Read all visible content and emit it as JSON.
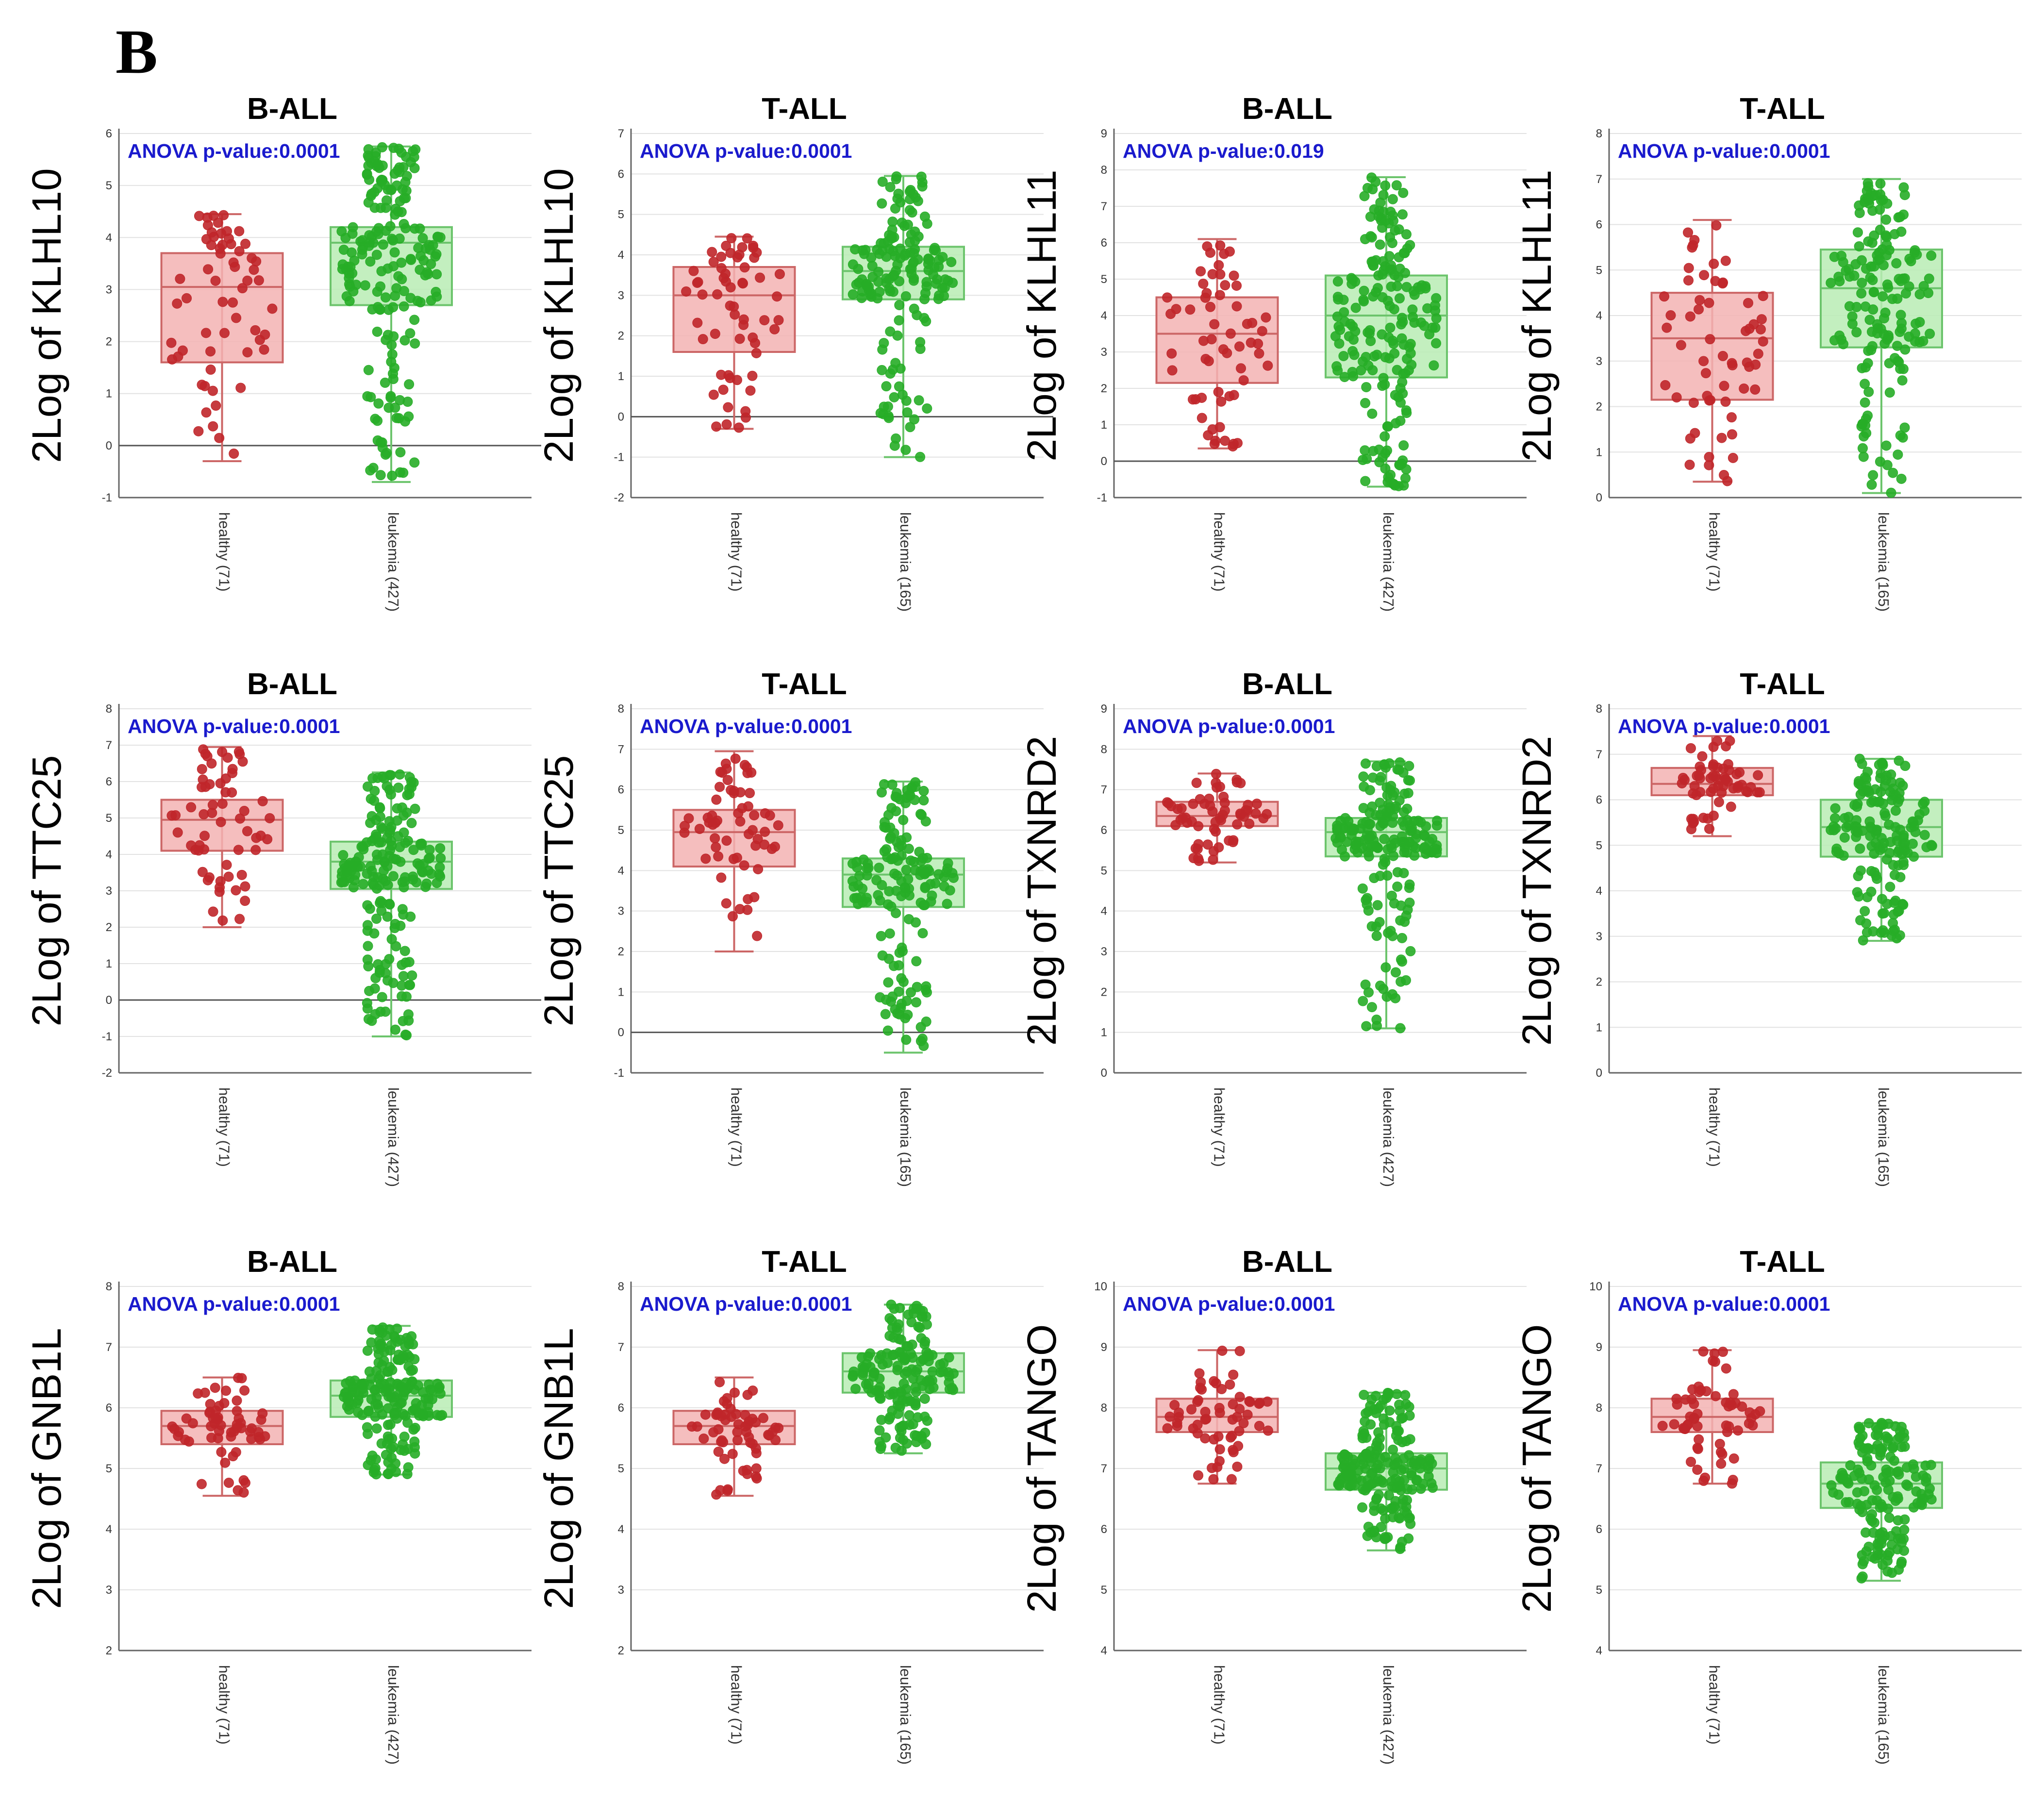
{
  "panel_label": "B",
  "colors": {
    "healthy_point": "#c0262a",
    "healthy_box": "#f3b3b3",
    "healthy_stroke": "#cc6666",
    "leukemia_point": "#27ad27",
    "leukemia_box": "#b8ecb4",
    "leukemia_stroke": "#6cc46c",
    "anova_text": "#1a1acd"
  },
  "chart_data": [
    {
      "type": "box",
      "title": "B-ALL",
      "ylabel": "2Log of KLHL10",
      "annotation": "ANOVA p-value:0.0001",
      "ylim": [
        -1,
        6
      ],
      "yticks": [
        "-1",
        "0",
        "1",
        "2",
        "3",
        "4",
        "5",
        "6"
      ],
      "zero_line": true,
      "categories": [
        "healthy (71)",
        "leukemia (427)"
      ],
      "groups": [
        {
          "name": "healthy (71)",
          "whisker_low": -0.3,
          "q1": 1.6,
          "median": 3.05,
          "q3": 3.7,
          "whisker_high": 4.45,
          "n": 71
        },
        {
          "name": "leukemia (427)",
          "whisker_low": -0.7,
          "q1": 2.7,
          "median": 3.9,
          "q3": 4.2,
          "whisker_high": 5.75,
          "n": 427
        }
      ]
    },
    {
      "type": "box",
      "title": "T-ALL",
      "ylabel": "2Log of KLHL10",
      "annotation": "ANOVA p-value:0.0001",
      "ylim": [
        -2,
        7
      ],
      "yticks": [
        "-2",
        "-1",
        "0",
        "1",
        "2",
        "3",
        "4",
        "5",
        "6",
        "7"
      ],
      "zero_line": true,
      "categories": [
        "healthy (71)",
        "leukemia (165)"
      ],
      "groups": [
        {
          "name": "healthy (71)",
          "whisker_low": -0.3,
          "q1": 1.6,
          "median": 3.0,
          "q3": 3.7,
          "whisker_high": 4.45,
          "n": 71
        },
        {
          "name": "leukemia (165)",
          "whisker_low": -1.0,
          "q1": 2.9,
          "median": 3.6,
          "q3": 4.2,
          "whisker_high": 5.95,
          "n": 165
        }
      ]
    },
    {
      "type": "box",
      "title": "B-ALL",
      "ylabel": "2Log of KLHL11",
      "annotation": "ANOVA p-value:0.019",
      "ylim": [
        -1,
        9
      ],
      "yticks": [
        "-1",
        "0",
        "1",
        "2",
        "3",
        "4",
        "5",
        "6",
        "7",
        "8",
        "9"
      ],
      "zero_line": true,
      "categories": [
        "healthy (71)",
        "leukemia (427)"
      ],
      "groups": [
        {
          "name": "healthy (71)",
          "whisker_low": 0.35,
          "q1": 2.15,
          "median": 3.5,
          "q3": 4.5,
          "whisker_high": 6.1,
          "n": 71
        },
        {
          "name": "leukemia (427)",
          "whisker_low": -0.7,
          "q1": 2.3,
          "median": 4.0,
          "q3": 5.1,
          "whisker_high": 7.8,
          "n": 427
        }
      ]
    },
    {
      "type": "box",
      "title": "T-ALL",
      "ylabel": "2Log of KLHL11",
      "annotation": "ANOVA p-value:0.0001",
      "ylim": [
        0,
        8
      ],
      "yticks": [
        "0",
        "1",
        "2",
        "3",
        "4",
        "5",
        "6",
        "7",
        "8"
      ],
      "zero_line": false,
      "categories": [
        "healthy (71)",
        "leukemia (165)"
      ],
      "groups": [
        {
          "name": "healthy (71)",
          "whisker_low": 0.35,
          "q1": 2.15,
          "median": 3.5,
          "q3": 4.5,
          "whisker_high": 6.1,
          "n": 71
        },
        {
          "name": "leukemia (165)",
          "whisker_low": 0.1,
          "q1": 3.3,
          "median": 4.6,
          "q3": 5.45,
          "whisker_high": 7.0,
          "n": 165
        }
      ]
    },
    {
      "type": "box",
      "title": "B-ALL",
      "ylabel": "2Log of TTC25",
      "annotation": "ANOVA p-value:0.0001",
      "ylim": [
        -2,
        8
      ],
      "yticks": [
        "-2",
        "-1",
        "0",
        "1",
        "2",
        "3",
        "4",
        "5",
        "6",
        "7",
        "8"
      ],
      "zero_line": true,
      "categories": [
        "healthy (71)",
        "leukemia (427)"
      ],
      "groups": [
        {
          "name": "healthy (71)",
          "whisker_low": 2.0,
          "q1": 4.1,
          "median": 4.95,
          "q3": 5.5,
          "whisker_high": 6.95,
          "n": 71
        },
        {
          "name": "leukemia (427)",
          "whisker_low": -1.0,
          "q1": 3.05,
          "median": 3.8,
          "q3": 4.35,
          "whisker_high": 6.25,
          "n": 427
        }
      ]
    },
    {
      "type": "box",
      "title": "T-ALL",
      "ylabel": "2Log of TTC25",
      "annotation": "ANOVA p-value:0.0001",
      "ylim": [
        -1,
        8
      ],
      "yticks": [
        "-1",
        "0",
        "1",
        "2",
        "3",
        "4",
        "5",
        "6",
        "7",
        "8"
      ],
      "zero_line": true,
      "categories": [
        "healthy (71)",
        "leukemia (165)"
      ],
      "groups": [
        {
          "name": "healthy (71)",
          "whisker_low": 2.0,
          "q1": 4.1,
          "median": 4.95,
          "q3": 5.5,
          "whisker_high": 6.95,
          "n": 71
        },
        {
          "name": "leukemia (165)",
          "whisker_low": -0.5,
          "q1": 3.1,
          "median": 3.9,
          "q3": 4.3,
          "whisker_high": 6.2,
          "n": 165
        }
      ]
    },
    {
      "type": "box",
      "title": "B-ALL",
      "ylabel": "2Log of TXNRD2",
      "annotation": "ANOVA p-value:0.0001",
      "ylim": [
        0,
        9
      ],
      "yticks": [
        "0",
        "1",
        "2",
        "3",
        "4",
        "5",
        "6",
        "7",
        "8",
        "9"
      ],
      "zero_line": false,
      "categories": [
        "healthy (71)",
        "leukemia (427)"
      ],
      "groups": [
        {
          "name": "healthy (71)",
          "whisker_low": 5.2,
          "q1": 6.1,
          "median": 6.35,
          "q3": 6.7,
          "whisker_high": 7.4,
          "n": 71
        },
        {
          "name": "leukemia (427)",
          "whisker_low": 1.1,
          "q1": 5.35,
          "median": 5.95,
          "q3": 6.3,
          "whisker_high": 7.7,
          "n": 427
        }
      ]
    },
    {
      "type": "box",
      "title": "T-ALL",
      "ylabel": "2Log of TXNRD2",
      "annotation": "ANOVA p-value:0.0001",
      "ylim": [
        0,
        8
      ],
      "yticks": [
        "0",
        "1",
        "2",
        "3",
        "4",
        "5",
        "6",
        "7",
        "8"
      ],
      "zero_line": false,
      "categories": [
        "healthy (71)",
        "leukemia (165)"
      ],
      "groups": [
        {
          "name": "healthy (71)",
          "whisker_low": 5.2,
          "q1": 6.1,
          "median": 6.35,
          "q3": 6.7,
          "whisker_high": 7.4,
          "n": 71
        },
        {
          "name": "leukemia (165)",
          "whisker_low": 2.9,
          "q1": 4.75,
          "median": 5.4,
          "q3": 6.0,
          "whisker_high": 6.9,
          "n": 165
        }
      ]
    },
    {
      "type": "box",
      "title": "B-ALL",
      "ylabel": "2Log of GNB1L",
      "annotation": "ANOVA p-value:0.0001",
      "ylim": [
        2,
        8
      ],
      "yticks": [
        "2",
        "3",
        "4",
        "5",
        "6",
        "7",
        "8"
      ],
      "zero_line": false,
      "categories": [
        "healthy (71)",
        "leukemia (427)"
      ],
      "groups": [
        {
          "name": "healthy (71)",
          "whisker_low": 4.55,
          "q1": 5.4,
          "median": 5.7,
          "q3": 5.95,
          "whisker_high": 6.5,
          "n": 71
        },
        {
          "name": "leukemia (427)",
          "whisker_low": 4.9,
          "q1": 5.85,
          "median": 6.2,
          "q3": 6.45,
          "whisker_high": 7.35,
          "n": 427
        }
      ]
    },
    {
      "type": "box",
      "title": "T-ALL",
      "ylabel": "2Log of GNB1L",
      "annotation": "ANOVA p-value:0.0001",
      "ylim": [
        2,
        8
      ],
      "yticks": [
        "2",
        "3",
        "4",
        "5",
        "6",
        "7",
        "8"
      ],
      "zero_line": false,
      "categories": [
        "healthy (71)",
        "leukemia (165)"
      ],
      "groups": [
        {
          "name": "healthy (71)",
          "whisker_low": 4.55,
          "q1": 5.4,
          "median": 5.7,
          "q3": 5.95,
          "whisker_high": 6.5,
          "n": 71
        },
        {
          "name": "leukemia (165)",
          "whisker_low": 5.25,
          "q1": 6.25,
          "median": 6.6,
          "q3": 6.9,
          "whisker_high": 7.7,
          "n": 165
        }
      ]
    },
    {
      "type": "box",
      "title": "B-ALL",
      "ylabel": "2Log of TANGO",
      "annotation": "ANOVA p-value:0.0001",
      "ylim": [
        4,
        10
      ],
      "yticks": [
        "4",
        "5",
        "6",
        "7",
        "8",
        "9",
        "10"
      ],
      "zero_line": false,
      "categories": [
        "healthy (71)",
        "leukemia (427)"
      ],
      "groups": [
        {
          "name": "healthy (71)",
          "whisker_low": 6.75,
          "q1": 7.6,
          "median": 7.85,
          "q3": 8.15,
          "whisker_high": 8.95,
          "n": 71
        },
        {
          "name": "leukemia (427)",
          "whisker_low": 5.65,
          "q1": 6.65,
          "median": 7.0,
          "q3": 7.25,
          "whisker_high": 8.25,
          "n": 427
        }
      ]
    },
    {
      "type": "box",
      "title": "T-ALL",
      "ylabel": "2Log of TANGO",
      "annotation": "ANOVA p-value:0.0001",
      "ylim": [
        4,
        10
      ],
      "yticks": [
        "4",
        "5",
        "6",
        "7",
        "8",
        "9",
        "10"
      ],
      "zero_line": false,
      "categories": [
        "healthy (71)",
        "leukemia (165)"
      ],
      "groups": [
        {
          "name": "healthy (71)",
          "whisker_low": 6.75,
          "q1": 7.6,
          "median": 7.85,
          "q3": 8.15,
          "whisker_high": 8.95,
          "n": 71
        },
        {
          "name": "leukemia (165)",
          "whisker_low": 5.15,
          "q1": 6.35,
          "median": 6.75,
          "q3": 7.1,
          "whisker_high": 7.75,
          "n": 165
        }
      ]
    }
  ]
}
